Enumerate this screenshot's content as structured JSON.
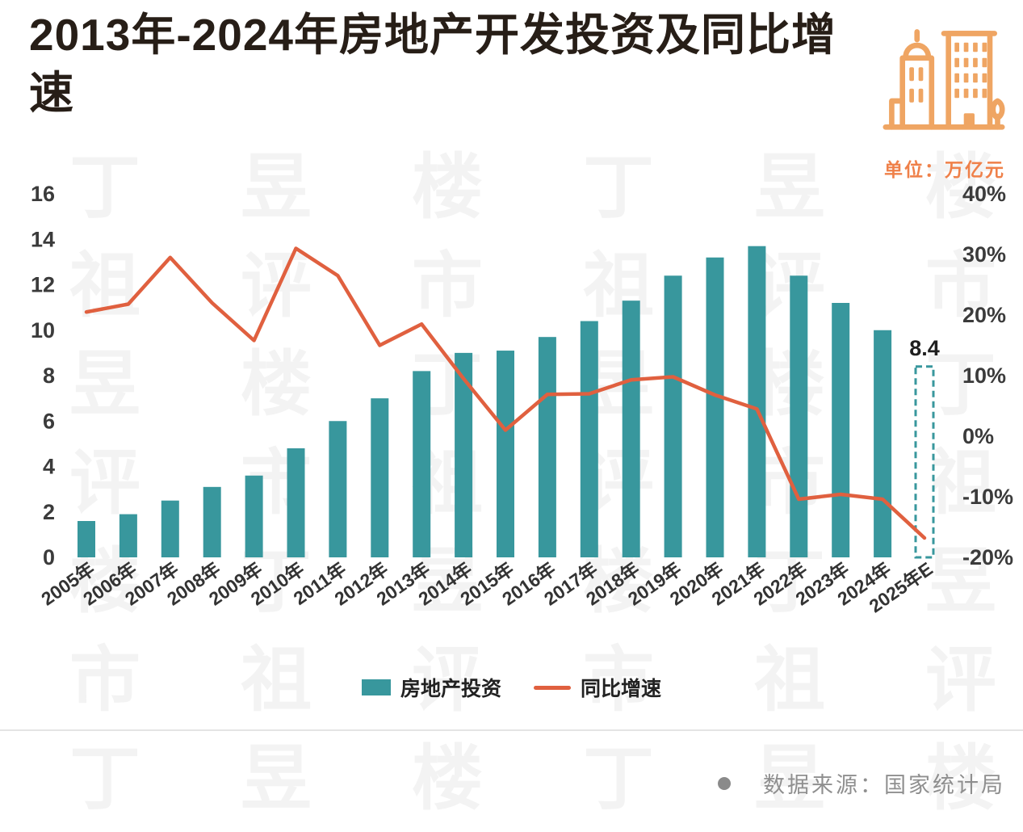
{
  "header": {
    "title": "2013年-2024年房地产开发投资及同比增速",
    "unit_label": "单位：万亿元"
  },
  "footer": {
    "source": "数据来源：国家统计局"
  },
  "watermark": {
    "text": "丁祖昱评楼市"
  },
  "colors": {
    "bar": "#38979D",
    "line": "#E0603F",
    "icon": "#EFA563",
    "unit_text": "#EF8049",
    "title_text": "#271E17",
    "axis_text": "#3B3B3B",
    "x_axis_text": "#333333",
    "source_text": "#8F8F8F",
    "watermark_text": "#000000"
  },
  "chart_data": {
    "type": "bar",
    "subtype": "bar+line combo, dual axis",
    "title": "2013年-2024年房地产开发投资及同比增速",
    "categories": [
      "2005年",
      "2006年",
      "2007年",
      "2008年",
      "2009年",
      "2010年",
      "2011年",
      "2012年",
      "2013年",
      "2014年",
      "2015年",
      "2016年",
      "2017年",
      "2018年",
      "2019年",
      "2020年",
      "2021年",
      "2022年",
      "2023年",
      "2024年",
      "2025年E"
    ],
    "series": [
      {
        "name": "房地产投资",
        "type": "bar",
        "axis": "left",
        "unit": "万亿元",
        "values": [
          1.6,
          1.9,
          2.5,
          3.1,
          3.6,
          4.8,
          6.0,
          7.0,
          8.2,
          9.0,
          9.1,
          9.7,
          10.4,
          11.3,
          12.4,
          13.2,
          13.7,
          12.4,
          11.2,
          10.0,
          8.4
        ]
      },
      {
        "name": "同比增速",
        "type": "line",
        "axis": "right",
        "unit": "%",
        "values": [
          20.5,
          21.8,
          29.5,
          22.0,
          15.8,
          31.0,
          26.5,
          15.0,
          18.5,
          9.5,
          1.0,
          6.9,
          7.0,
          9.3,
          9.8,
          6.8,
          4.5,
          -10.4,
          -9.6,
          -10.4,
          -16.8
        ]
      }
    ],
    "left_axis": {
      "range": [
        0,
        16
      ],
      "ticks": [
        {
          "label": "0",
          "value": 0
        },
        {
          "label": "2",
          "value": 2
        },
        {
          "label": "4",
          "value": 4
        },
        {
          "label": "6",
          "value": 6
        },
        {
          "label": "8",
          "value": 8
        },
        {
          "label": "10",
          "value": 10
        },
        {
          "label": "12",
          "value": 12
        },
        {
          "label": "14",
          "value": 14
        },
        {
          "label": "16",
          "value": 16
        }
      ]
    },
    "right_axis": {
      "range": [
        -20,
        40
      ],
      "ticks": [
        {
          "label": "40%",
          "value": 40
        },
        {
          "label": "30%",
          "value": 30
        },
        {
          "label": "20%",
          "value": 20
        },
        {
          "label": "10%",
          "value": 10
        },
        {
          "label": "0%",
          "value": 0
        },
        {
          "label": "-10%",
          "value": -10
        },
        {
          "label": "-20%",
          "value": -20
        }
      ]
    },
    "forecast_category": "2025年E",
    "annotations": [
      {
        "label": "8.4",
        "category": "2025年E"
      }
    ],
    "grid": "off",
    "legend_position": "bottom"
  }
}
